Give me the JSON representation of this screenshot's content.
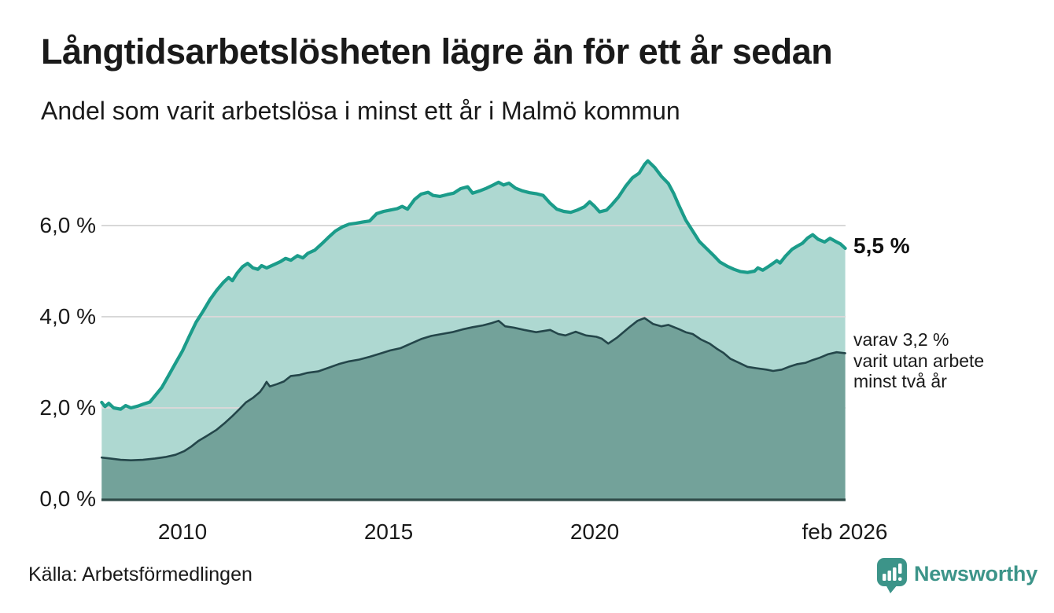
{
  "header": {
    "title": "Långtidsarbetslösheten lägre än för ett år sedan",
    "subtitle": "Andel som varit arbetslösa i minst ett år i Malmö kommun"
  },
  "chart_data": {
    "type": "area",
    "title": "Långtidsarbetslösheten lägre än för ett år sedan",
    "subtitle": "Andel som varit arbetslösa i minst ett år i Malmö kommun",
    "unit": "%",
    "x_range": [
      2008.04,
      2026.083
    ],
    "ylim": [
      0,
      7.75
    ],
    "grid": true,
    "legend": "none",
    "y_axis": {
      "ticks": [
        {
          "label": "0,0 %",
          "value": 0
        },
        {
          "label": "2,0 %",
          "value": 2
        },
        {
          "label": "4,0 %",
          "value": 4
        },
        {
          "label": "6,0 %",
          "value": 6
        }
      ]
    },
    "x_axis": {
      "ticks": [
        {
          "label": "2010",
          "year": 2010
        },
        {
          "label": "2015",
          "year": 2015
        },
        {
          "label": "2020",
          "year": 2020
        },
        {
          "label": "feb 2026",
          "year": 2026.083
        }
      ]
    },
    "series": [
      {
        "name": "Andel som varit arbetslösa minst ett år",
        "latest_value": "5,5 %",
        "line_color": "#1b9c8a",
        "fill_color": "#aed8d1",
        "points": [
          [
            2008.04,
            2.12
          ],
          [
            2008.12,
            2.03
          ],
          [
            2008.21,
            2.1
          ],
          [
            2008.33,
            2.0
          ],
          [
            2008.5,
            1.97
          ],
          [
            2008.62,
            2.05
          ],
          [
            2008.75,
            2.0
          ],
          [
            2008.92,
            2.04
          ],
          [
            2009.04,
            2.08
          ],
          [
            2009.21,
            2.13
          ],
          [
            2009.33,
            2.26
          ],
          [
            2009.5,
            2.45
          ],
          [
            2009.67,
            2.72
          ],
          [
            2009.83,
            2.98
          ],
          [
            2010.0,
            3.25
          ],
          [
            2010.17,
            3.58
          ],
          [
            2010.33,
            3.88
          ],
          [
            2010.5,
            4.12
          ],
          [
            2010.67,
            4.38
          ],
          [
            2010.83,
            4.58
          ],
          [
            2011.0,
            4.76
          ],
          [
            2011.12,
            4.86
          ],
          [
            2011.21,
            4.79
          ],
          [
            2011.33,
            4.96
          ],
          [
            2011.46,
            5.1
          ],
          [
            2011.58,
            5.17
          ],
          [
            2011.71,
            5.07
          ],
          [
            2011.83,
            5.04
          ],
          [
            2011.92,
            5.12
          ],
          [
            2012.04,
            5.07
          ],
          [
            2012.21,
            5.14
          ],
          [
            2012.38,
            5.21
          ],
          [
            2012.5,
            5.28
          ],
          [
            2012.63,
            5.24
          ],
          [
            2012.79,
            5.34
          ],
          [
            2012.92,
            5.29
          ],
          [
            2013.04,
            5.39
          ],
          [
            2013.21,
            5.46
          ],
          [
            2013.38,
            5.6
          ],
          [
            2013.54,
            5.74
          ],
          [
            2013.71,
            5.88
          ],
          [
            2013.88,
            5.97
          ],
          [
            2014.04,
            6.03
          ],
          [
            2014.21,
            6.05
          ],
          [
            2014.38,
            6.08
          ],
          [
            2014.54,
            6.1
          ],
          [
            2014.71,
            6.26
          ],
          [
            2014.88,
            6.31
          ],
          [
            2015.04,
            6.34
          ],
          [
            2015.21,
            6.37
          ],
          [
            2015.33,
            6.42
          ],
          [
            2015.46,
            6.36
          ],
          [
            2015.63,
            6.57
          ],
          [
            2015.79,
            6.69
          ],
          [
            2015.96,
            6.73
          ],
          [
            2016.08,
            6.66
          ],
          [
            2016.25,
            6.64
          ],
          [
            2016.42,
            6.68
          ],
          [
            2016.58,
            6.71
          ],
          [
            2016.75,
            6.81
          ],
          [
            2016.92,
            6.85
          ],
          [
            2017.04,
            6.71
          ],
          [
            2017.21,
            6.76
          ],
          [
            2017.38,
            6.82
          ],
          [
            2017.54,
            6.89
          ],
          [
            2017.67,
            6.95
          ],
          [
            2017.79,
            6.89
          ],
          [
            2017.92,
            6.93
          ],
          [
            2018.08,
            6.82
          ],
          [
            2018.25,
            6.76
          ],
          [
            2018.42,
            6.72
          ],
          [
            2018.58,
            6.7
          ],
          [
            2018.75,
            6.66
          ],
          [
            2018.92,
            6.49
          ],
          [
            2019.08,
            6.36
          ],
          [
            2019.25,
            6.31
          ],
          [
            2019.42,
            6.29
          ],
          [
            2019.58,
            6.34
          ],
          [
            2019.75,
            6.41
          ],
          [
            2019.88,
            6.52
          ],
          [
            2020.0,
            6.42
          ],
          [
            2020.12,
            6.3
          ],
          [
            2020.29,
            6.34
          ],
          [
            2020.42,
            6.46
          ],
          [
            2020.58,
            6.63
          ],
          [
            2020.75,
            6.86
          ],
          [
            2020.92,
            7.05
          ],
          [
            2021.08,
            7.15
          ],
          [
            2021.21,
            7.34
          ],
          [
            2021.29,
            7.42
          ],
          [
            2021.46,
            7.27
          ],
          [
            2021.62,
            7.08
          ],
          [
            2021.79,
            6.92
          ],
          [
            2021.92,
            6.7
          ],
          [
            2022.04,
            6.45
          ],
          [
            2022.21,
            6.12
          ],
          [
            2022.38,
            5.88
          ],
          [
            2022.54,
            5.65
          ],
          [
            2022.71,
            5.5
          ],
          [
            2022.88,
            5.35
          ],
          [
            2023.04,
            5.2
          ],
          [
            2023.21,
            5.11
          ],
          [
            2023.38,
            5.04
          ],
          [
            2023.54,
            4.99
          ],
          [
            2023.71,
            4.97
          ],
          [
            2023.88,
            5.0
          ],
          [
            2023.96,
            5.07
          ],
          [
            2024.08,
            5.02
          ],
          [
            2024.25,
            5.12
          ],
          [
            2024.42,
            5.23
          ],
          [
            2024.5,
            5.18
          ],
          [
            2024.63,
            5.33
          ],
          [
            2024.79,
            5.48
          ],
          [
            2024.92,
            5.55
          ],
          [
            2025.04,
            5.61
          ],
          [
            2025.17,
            5.73
          ],
          [
            2025.29,
            5.8
          ],
          [
            2025.42,
            5.7
          ],
          [
            2025.58,
            5.64
          ],
          [
            2025.71,
            5.72
          ],
          [
            2025.83,
            5.66
          ],
          [
            2025.96,
            5.6
          ],
          [
            2026.08,
            5.5
          ]
        ]
      },
      {
        "name": "varav arbetslösa minst två år",
        "latest_value": "3,2 %",
        "line_color": "#24464a",
        "fill_color": "#73a29a",
        "points": [
          [
            2008.04,
            0.91
          ],
          [
            2008.25,
            0.89
          ],
          [
            2008.5,
            0.86
          ],
          [
            2008.75,
            0.85
          ],
          [
            2009.04,
            0.86
          ],
          [
            2009.33,
            0.89
          ],
          [
            2009.58,
            0.92
          ],
          [
            2009.83,
            0.97
          ],
          [
            2010.04,
            1.05
          ],
          [
            2010.21,
            1.15
          ],
          [
            2010.38,
            1.27
          ],
          [
            2010.58,
            1.38
          ],
          [
            2010.83,
            1.52
          ],
          [
            2011.04,
            1.68
          ],
          [
            2011.21,
            1.82
          ],
          [
            2011.38,
            1.97
          ],
          [
            2011.54,
            2.12
          ],
          [
            2011.71,
            2.22
          ],
          [
            2011.88,
            2.35
          ],
          [
            2011.96,
            2.45
          ],
          [
            2012.04,
            2.57
          ],
          [
            2012.12,
            2.47
          ],
          [
            2012.29,
            2.52
          ],
          [
            2012.46,
            2.58
          ],
          [
            2012.63,
            2.7
          ],
          [
            2012.83,
            2.72
          ],
          [
            2013.04,
            2.77
          ],
          [
            2013.29,
            2.8
          ],
          [
            2013.54,
            2.88
          ],
          [
            2013.79,
            2.96
          ],
          [
            2014.04,
            3.02
          ],
          [
            2014.29,
            3.06
          ],
          [
            2014.54,
            3.12
          ],
          [
            2014.79,
            3.19
          ],
          [
            2015.04,
            3.26
          ],
          [
            2015.29,
            3.31
          ],
          [
            2015.54,
            3.41
          ],
          [
            2015.79,
            3.51
          ],
          [
            2016.04,
            3.58
          ],
          [
            2016.29,
            3.62
          ],
          [
            2016.54,
            3.66
          ],
          [
            2016.79,
            3.72
          ],
          [
            2017.04,
            3.77
          ],
          [
            2017.29,
            3.81
          ],
          [
            2017.5,
            3.86
          ],
          [
            2017.67,
            3.91
          ],
          [
            2017.83,
            3.79
          ],
          [
            2018.04,
            3.76
          ],
          [
            2018.29,
            3.71
          ],
          [
            2018.58,
            3.66
          ],
          [
            2018.92,
            3.71
          ],
          [
            2019.12,
            3.62
          ],
          [
            2019.29,
            3.59
          ],
          [
            2019.54,
            3.67
          ],
          [
            2019.79,
            3.59
          ],
          [
            2020.04,
            3.56
          ],
          [
            2020.17,
            3.52
          ],
          [
            2020.33,
            3.41
          ],
          [
            2020.54,
            3.54
          ],
          [
            2020.83,
            3.76
          ],
          [
            2021.04,
            3.91
          ],
          [
            2021.21,
            3.97
          ],
          [
            2021.42,
            3.84
          ],
          [
            2021.62,
            3.79
          ],
          [
            2021.79,
            3.82
          ],
          [
            2022.04,
            3.73
          ],
          [
            2022.21,
            3.66
          ],
          [
            2022.38,
            3.62
          ],
          [
            2022.58,
            3.5
          ],
          [
            2022.79,
            3.41
          ],
          [
            2022.96,
            3.3
          ],
          [
            2023.12,
            3.21
          ],
          [
            2023.29,
            3.08
          ],
          [
            2023.5,
            2.99
          ],
          [
            2023.71,
            2.9
          ],
          [
            2023.92,
            2.87
          ],
          [
            2024.17,
            2.84
          ],
          [
            2024.33,
            2.81
          ],
          [
            2024.54,
            2.84
          ],
          [
            2024.71,
            2.9
          ],
          [
            2024.92,
            2.96
          ],
          [
            2025.12,
            2.99
          ],
          [
            2025.29,
            3.05
          ],
          [
            2025.46,
            3.1
          ],
          [
            2025.67,
            3.18
          ],
          [
            2025.87,
            3.22
          ],
          [
            2026.08,
            3.2
          ]
        ]
      }
    ],
    "annotations": {
      "total": "5,5 %",
      "breakdown_line1": "varav 3,2 %",
      "breakdown_line2": "varit utan arbete",
      "breakdown_line3": "minst två år"
    },
    "colors": {
      "grid": "#d8d8d8",
      "axis": "#2e4a47",
      "text": "#1a1a1a"
    }
  },
  "footer": {
    "source": "Källa: Arbetsförmedlingen",
    "brand": "Newsworthy",
    "brand_color": "#3c9489"
  }
}
